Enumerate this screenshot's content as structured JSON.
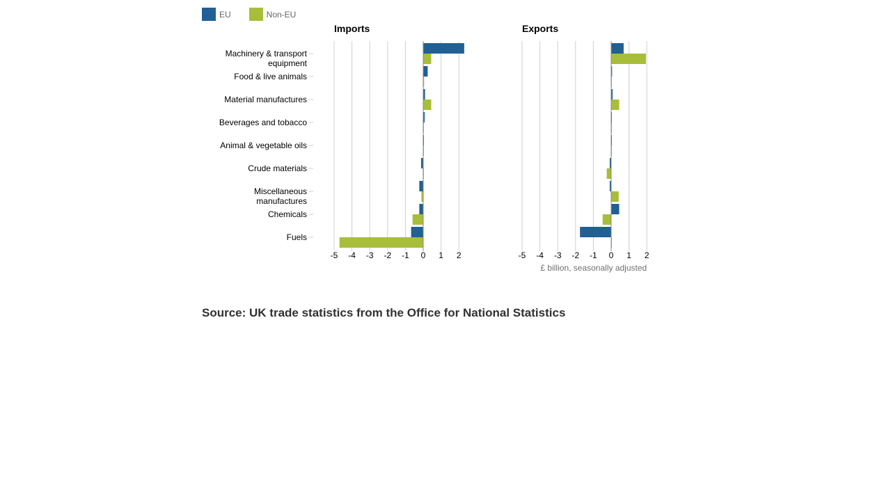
{
  "legend": [
    {
      "name": "EU",
      "color": "#206095"
    },
    {
      "name": "Non-EU",
      "color": "#a8bd3a"
    }
  ],
  "source": "Source: UK trade statistics from the Office for National Statistics",
  "chart_data": [
    {
      "type": "bar",
      "orientation": "horizontal",
      "title": "Imports",
      "xlabel": "",
      "xlim": [
        -5,
        2.6
      ],
      "xticks": [
        "-5",
        "-4",
        "-3",
        "-2",
        "-1",
        "0",
        "1",
        "2"
      ],
      "grid": true,
      "categories": [
        [
          "Machinery & transport",
          "equipment"
        ],
        [
          "Food & live animals"
        ],
        [
          "Material manufactures"
        ],
        [
          "Beverages and tobacco"
        ],
        [
          "Animal & vegetable oils"
        ],
        [
          "Crude materials"
        ],
        [
          "Miscellaneous",
          "manufactures"
        ],
        [
          "Chemicals"
        ],
        [
          "Fuels"
        ]
      ],
      "series": [
        {
          "name": "EU",
          "values": [
            2.3,
            0.25,
            0.1,
            0.08,
            0.02,
            -0.12,
            -0.22,
            -0.22,
            -0.68
          ]
        },
        {
          "name": "Non-EU",
          "values": [
            0.45,
            0.05,
            0.45,
            0.02,
            0.02,
            0.02,
            -0.1,
            -0.6,
            -4.7
          ]
        }
      ]
    },
    {
      "type": "bar",
      "orientation": "horizontal",
      "title": "Exports",
      "xlabel": "£ billion, seasonally adjusted",
      "xlim": [
        -5,
        2.6
      ],
      "xticks": [
        "-5",
        "-4",
        "-3",
        "-2",
        "-1",
        "0",
        "1",
        "2"
      ],
      "grid": true,
      "categories": [
        [
          "Machinery & transport",
          "equipment"
        ],
        [
          "Food & live animals"
        ],
        [
          "Material manufactures"
        ],
        [
          "Beverages and tobacco"
        ],
        [
          "Animal & vegetable oils"
        ],
        [
          "Crude materials"
        ],
        [
          "Miscellaneous",
          "manufactures"
        ],
        [
          "Chemicals"
        ],
        [
          "Fuels"
        ]
      ],
      "series": [
        {
          "name": "EU",
          "values": [
            0.7,
            0.05,
            0.08,
            0.02,
            0.02,
            -0.08,
            -0.08,
            0.45,
            -1.75
          ]
        },
        {
          "name": "Non-EU",
          "values": [
            1.95,
            0.02,
            0.45,
            0.02,
            0.02,
            -0.25,
            0.42,
            -0.48,
            0.02
          ]
        }
      ]
    }
  ]
}
